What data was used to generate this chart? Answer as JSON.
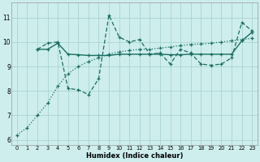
{
  "xlabel": "Humidex (Indice chaleur)",
  "bg_color": "#cdeeed",
  "line_color": "#1a6e60",
  "grid_color": "#aed8d4",
  "xlim": [
    -0.5,
    23.5
  ],
  "ylim": [
    5.8,
    11.6
  ],
  "yticks": [
    6,
    7,
    8,
    9,
    10,
    11
  ],
  "xticks": [
    0,
    1,
    2,
    3,
    4,
    5,
    6,
    7,
    8,
    9,
    10,
    11,
    12,
    13,
    14,
    15,
    16,
    17,
    18,
    19,
    20,
    21,
    22,
    23
  ],
  "series_dotted": [
    [
      0,
      6.2
    ],
    [
      1,
      6.5
    ],
    [
      2,
      7.0
    ],
    [
      3,
      7.5
    ],
    [
      4,
      8.2
    ],
    [
      5,
      8.7
    ],
    [
      6,
      9.0
    ],
    [
      7,
      9.2
    ],
    [
      8,
      9.35
    ],
    [
      9,
      9.5
    ],
    [
      10,
      9.6
    ],
    [
      11,
      9.65
    ],
    [
      12,
      9.7
    ],
    [
      13,
      9.7
    ],
    [
      14,
      9.75
    ],
    [
      15,
      9.8
    ],
    [
      16,
      9.85
    ],
    [
      17,
      9.9
    ],
    [
      18,
      9.92
    ],
    [
      19,
      9.95
    ],
    [
      20,
      10.0
    ],
    [
      21,
      10.05
    ],
    [
      22,
      10.1
    ],
    [
      23,
      10.15
    ]
  ],
  "series_dashed": [
    [
      2,
      9.7
    ],
    [
      3,
      9.95
    ],
    [
      4,
      10.0
    ],
    [
      5,
      8.1
    ],
    [
      6,
      8.05
    ],
    [
      7,
      7.85
    ],
    [
      8,
      8.5
    ],
    [
      9,
      11.1
    ],
    [
      10,
      10.2
    ],
    [
      11,
      10.0
    ],
    [
      12,
      10.1
    ],
    [
      13,
      9.5
    ],
    [
      14,
      9.55
    ],
    [
      15,
      9.1
    ],
    [
      16,
      9.7
    ],
    [
      17,
      9.55
    ],
    [
      18,
      9.1
    ],
    [
      19,
      9.05
    ],
    [
      20,
      9.1
    ],
    [
      21,
      9.35
    ],
    [
      22,
      10.8
    ],
    [
      23,
      10.45
    ]
  ],
  "series_solid": [
    [
      2,
      9.7
    ],
    [
      3,
      9.7
    ],
    [
      4,
      9.95
    ],
    [
      5,
      9.5
    ],
    [
      6,
      9.48
    ],
    [
      7,
      9.45
    ],
    [
      8,
      9.45
    ],
    [
      9,
      9.45
    ],
    [
      10,
      9.5
    ],
    [
      11,
      9.5
    ],
    [
      12,
      9.5
    ],
    [
      13,
      9.5
    ],
    [
      14,
      9.5
    ],
    [
      15,
      9.48
    ],
    [
      16,
      9.48
    ],
    [
      17,
      9.5
    ],
    [
      18,
      9.5
    ],
    [
      19,
      9.5
    ],
    [
      20,
      9.5
    ],
    [
      21,
      9.5
    ],
    [
      22,
      10.05
    ],
    [
      23,
      10.4
    ]
  ]
}
